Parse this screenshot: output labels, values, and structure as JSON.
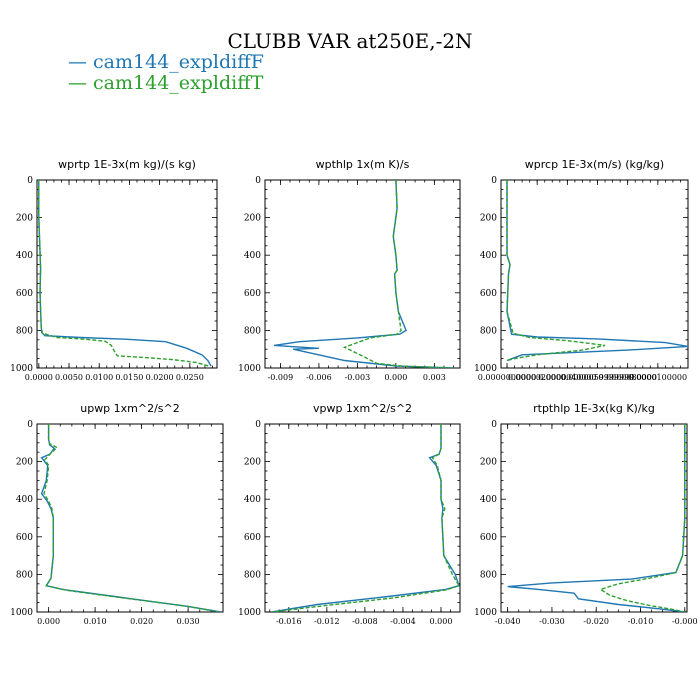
{
  "title": "CLUBB VAR at250E,-2N",
  "legend": [
    {
      "label": "— cam144_expldiffF",
      "color": "#1f77b4"
    },
    {
      "label": "— cam144_expldiffT",
      "color": "#2ca02c"
    }
  ],
  "chart_data": [
    {
      "type": "line",
      "title": "wprtp  1E-3x(m kg)/(s kg)",
      "xlim": [
        -0.0003,
        0.0295
      ],
      "ylim": [
        1000,
        0
      ],
      "xticks": [
        0.0,
        0.005,
        0.01,
        0.015,
        0.02,
        0.025
      ],
      "xtick_labels": [
        "0.0000",
        "0.0050",
        "0.0100",
        "0.0150",
        "0.0200",
        "0.0250"
      ],
      "yticks": [
        0,
        200,
        400,
        600,
        800,
        1000
      ],
      "ytick_labels": [
        "0",
        "200",
        "400",
        "600",
        "800",
        "1000"
      ],
      "series": [
        {
          "name": "cam144_expldiffF",
          "color": "#1f77b4",
          "dash": false,
          "x": [
            0,
            0,
            0.0003,
            0.0002,
            0.0004,
            0.0005,
            0.001,
            0.007,
            0.015,
            0.021,
            0.0245,
            0.027,
            0.028,
            0.0285
          ],
          "y": [
            0,
            200,
            470,
            600,
            780,
            810,
            828,
            838,
            848,
            860,
            895,
            930,
            960,
            990
          ]
        },
        {
          "name": "cam144_expldiffT",
          "color": "#2ca02c",
          "dash": true,
          "x": [
            0,
            0,
            0.0003,
            0.0002,
            0.0004,
            0.0006,
            0.003,
            0.008,
            0.011,
            0.012,
            0.0125,
            0.013,
            0.018,
            0.022,
            0.026,
            0.0282
          ],
          "y": [
            0,
            200,
            470,
            600,
            780,
            815,
            838,
            848,
            858,
            880,
            910,
            935,
            945,
            955,
            970,
            990
          ]
        }
      ]
    },
    {
      "type": "line",
      "title": "wpthlp  1x(m K)/s",
      "xlim": [
        -0.0102,
        0.005
      ],
      "ylim": [
        1000,
        0
      ],
      "xticks": [
        -0.009,
        -0.006,
        -0.003,
        0.0,
        0.003
      ],
      "xtick_labels": [
        "-0.009",
        "-0.006",
        "-0.003",
        "0.000",
        "0.003"
      ],
      "yticks": [
        0,
        200,
        400,
        600,
        800,
        1000
      ],
      "ytick_labels": [
        "0",
        "200",
        "400",
        "600",
        "800",
        "1000"
      ],
      "series": [
        {
          "name": "cam144_expldiffF",
          "color": "#1f77b4",
          "dash": false,
          "x": [
            0,
            0.0001,
            -0.0002,
            0,
            0.0001,
            -0.0001,
            0,
            0.0002,
            0.0008,
            0.0003,
            -0.003,
            -0.0075,
            -0.0095,
            -0.006,
            -0.008,
            -0.004,
            0.0001,
            0.0045
          ],
          "y": [
            0,
            150,
            300,
            400,
            480,
            500,
            600,
            700,
            800,
            820,
            840,
            860,
            880,
            895,
            900,
            960,
            990,
            1000
          ]
        },
        {
          "name": "cam144_expldiffT",
          "color": "#2ca02c",
          "dash": true,
          "x": [
            0,
            0.0001,
            -0.0002,
            0,
            0.0001,
            -0.0001,
            0,
            0.0002,
            0.0004,
            0.0001,
            -0.002,
            -0.004,
            -0.0025,
            -0.0015,
            0.0005,
            0.0045
          ],
          "y": [
            0,
            150,
            300,
            400,
            480,
            500,
            600,
            700,
            800,
            820,
            840,
            890,
            940,
            975,
            990,
            1000
          ]
        }
      ]
    },
    {
      "type": "line",
      "title": "wprcp  1E-3x(m/s) (kg/kg)",
      "xlim": [
        -4e-07,
        1.2e-05
      ],
      "ylim": [
        1000,
        0
      ],
      "xticks": [
        0.0,
        2e-06,
        4e-06,
        6e-06,
        8e-06,
        1e-05
      ],
      "xtick_labels": [
        "0.0000000000",
        "0.0000020000",
        "0.0000040000",
        "0.0000059999999",
        "0.0000080000",
        "0.0000100000"
      ],
      "yticks": [
        0,
        200,
        400,
        600,
        800,
        1000
      ],
      "ytick_labels": [
        "0",
        "200",
        "400",
        "600",
        "800",
        "1000"
      ],
      "series": [
        {
          "name": "cam144_expldiffF",
          "color": "#1f77b4",
          "dash": false,
          "x": [
            0,
            0,
            2e-07,
            1e-07,
            0,
            3e-07,
            2e-06,
            6e-06,
            1.05e-05,
            1.2e-05,
            8e-06,
            1e-06,
            0
          ],
          "y": [
            0,
            400,
            450,
            500,
            700,
            820,
            835,
            845,
            865,
            885,
            905,
            930,
            960
          ]
        },
        {
          "name": "cam144_expldiffT",
          "color": "#2ca02c",
          "dash": true,
          "x": [
            0,
            0,
            2e-07,
            1e-07,
            0,
            4e-07,
            1.5e-06,
            4e-06,
            6.5e-06,
            5e-06,
            2e-06,
            5e-07,
            0
          ],
          "y": [
            0,
            400,
            450,
            500,
            700,
            815,
            838,
            855,
            880,
            905,
            930,
            950,
            960
          ]
        }
      ]
    },
    {
      "type": "line",
      "title": "upwp  1xm^2/s^2",
      "xlim": [
        -0.0025,
        0.0375
      ],
      "ylim": [
        1000,
        0
      ],
      "xticks": [
        0.0,
        0.01,
        0.02,
        0.03
      ],
      "xtick_labels": [
        "0.000",
        "0.010",
        "0.020",
        "0.030"
      ],
      "yticks": [
        0,
        200,
        400,
        600,
        800,
        1000
      ],
      "ytick_labels": [
        "0",
        "200",
        "400",
        "600",
        "800",
        "1000"
      ],
      "series": [
        {
          "name": "cam144_expldiffF",
          "color": "#1f77b4",
          "dash": false,
          "x": [
            0,
            0,
            0.0002,
            0.0012,
            0.0003,
            -0.0015,
            -0.0002,
            -0.0005,
            -0.0015,
            -0.0003,
            0.0005,
            0.001,
            0.001,
            0.0005,
            -0.0005,
            0.003,
            0.015,
            0.03,
            0.037
          ],
          "y": [
            0,
            80,
            110,
            130,
            160,
            180,
            220,
            300,
            370,
            410,
            450,
            500,
            700,
            820,
            860,
            880,
            920,
            970,
            1000
          ]
        },
        {
          "name": "cam144_expldiffT",
          "color": "#2ca02c",
          "dash": true,
          "x": [
            0,
            0,
            0.0002,
            0.0018,
            0.0003,
            -0.0008,
            0,
            -0.0003,
            -0.001,
            0,
            0.0007,
            0.001,
            0.001,
            0.0005,
            -0.0005,
            0.004,
            0.016,
            0.03,
            0.0365
          ],
          "y": [
            0,
            80,
            105,
            125,
            160,
            190,
            220,
            300,
            370,
            410,
            450,
            500,
            700,
            820,
            860,
            885,
            925,
            970,
            1000
          ]
        }
      ]
    },
    {
      "type": "line",
      "title": "vpwp  1xm^2/s^2",
      "xlim": [
        -0.0185,
        0.002
      ],
      "ylim": [
        1000,
        0
      ],
      "xticks": [
        -0.016,
        -0.012,
        -0.008,
        -0.004,
        0.0
      ],
      "xtick_labels": [
        "-0.016",
        "-0.012",
        "-0.008",
        "-0.004",
        "0.000"
      ],
      "yticks": [
        0,
        200,
        400,
        600,
        800,
        1000
      ],
      "ytick_labels": [
        "0",
        "200",
        "400",
        "600",
        "800",
        "1000"
      ],
      "series": [
        {
          "name": "cam144_expldiffF",
          "color": "#1f77b4",
          "dash": false,
          "x": [
            0,
            0,
            -0.0002,
            -0.0012,
            -0.0005,
            0,
            0,
            0.0002,
            0.0001,
            0.0003,
            0.0015,
            0.0019,
            0.0005,
            -0.006,
            -0.013,
            -0.0178
          ],
          "y": [
            0,
            130,
            160,
            180,
            220,
            300,
            400,
            450,
            500,
            700,
            800,
            860,
            880,
            920,
            960,
            1000
          ]
        },
        {
          "name": "cam144_expldiffT",
          "color": "#2ca02c",
          "dash": true,
          "x": [
            0,
            0,
            -0.0002,
            -0.0009,
            -0.0004,
            0,
            0,
            0.0004,
            0.0001,
            0.0003,
            0.0012,
            0.0019,
            0.0006,
            -0.005,
            -0.012,
            -0.0178
          ],
          "y": [
            0,
            130,
            160,
            180,
            220,
            300,
            400,
            450,
            500,
            700,
            800,
            860,
            882,
            925,
            965,
            1000
          ]
        }
      ]
    },
    {
      "type": "line",
      "title": "rtpthlp  1E-3x(kg K)/kg",
      "xlim": [
        -0.0415,
        0.0005
      ],
      "ylim": [
        1000,
        0
      ],
      "xticks": [
        -0.04,
        -0.03,
        -0.02,
        -0.01,
        0.0
      ],
      "xtick_labels": [
        "-0.040",
        "-0.030",
        "-0.020",
        "-0.010",
        "-0.000"
      ],
      "yticks": [
        0,
        200,
        400,
        600,
        800,
        1000
      ],
      "ytick_labels": [
        "0",
        "200",
        "400",
        "600",
        "800",
        "1000"
      ],
      "series": [
        {
          "name": "cam144_expldiffF",
          "color": "#1f77b4",
          "dash": false,
          "x": [
            0,
            0,
            -0.0005,
            -0.002,
            -0.012,
            -0.03,
            -0.04,
            -0.033,
            -0.025,
            -0.024,
            -0.015,
            -0.005,
            0
          ],
          "y": [
            0,
            500,
            700,
            790,
            825,
            845,
            865,
            880,
            900,
            930,
            960,
            985,
            1000
          ]
        },
        {
          "name": "cam144_expldiffT",
          "color": "#2ca02c",
          "dash": true,
          "x": [
            0,
            0,
            -0.0005,
            -0.002,
            -0.008,
            -0.015,
            -0.019,
            -0.017,
            -0.013,
            -0.008,
            -0.003,
            0
          ],
          "y": [
            0,
            500,
            700,
            790,
            820,
            850,
            880,
            910,
            940,
            965,
            985,
            1000
          ]
        }
      ]
    }
  ]
}
